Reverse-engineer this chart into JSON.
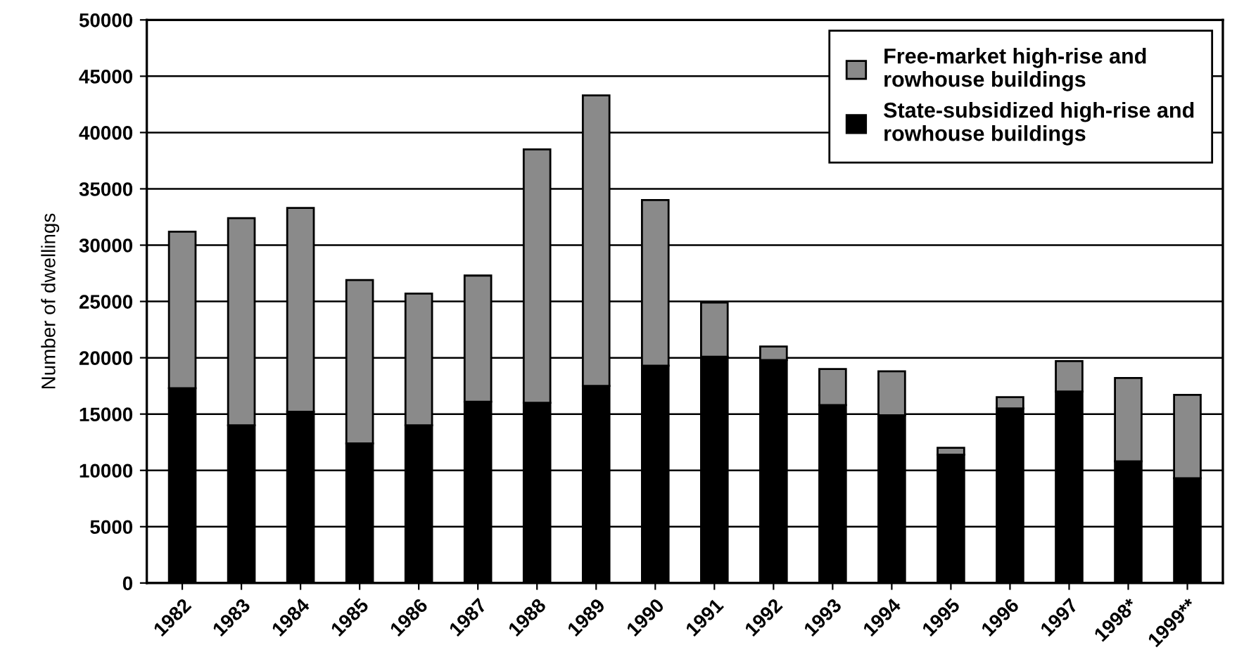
{
  "chart_data": {
    "type": "bar",
    "stacked": true,
    "ylabel": "Number of dwellings",
    "categories": [
      "1982",
      "1983",
      "1984",
      "1985",
      "1986",
      "1987",
      "1988",
      "1989",
      "1990",
      "1991",
      "1992",
      "1993",
      "1994",
      "1995",
      "1996",
      "1997",
      "1998*",
      "1999**"
    ],
    "series": [
      {
        "name": "State-subsidized high-rise and rowhouse buildings",
        "color": "#000000",
        "values": [
          17300,
          14000,
          15200,
          12400,
          14000,
          16100,
          16000,
          17500,
          19300,
          20100,
          19800,
          15800,
          14900,
          11400,
          15500,
          17000,
          10800,
          9300
        ]
      },
      {
        "name": "Free-market high-rise and rowhouse buildings",
        "color": "#8a8a8a",
        "values": [
          13900,
          18400,
          18100,
          14500,
          11700,
          11200,
          22500,
          25800,
          14700,
          4800,
          1200,
          3200,
          3900,
          600,
          1000,
          2700,
          7400,
          7400
        ]
      }
    ],
    "ylim": [
      0,
      50000
    ],
    "yticks": [
      0,
      5000,
      10000,
      15000,
      20000,
      25000,
      30000,
      35000,
      40000,
      45000,
      50000
    ],
    "grid": "y",
    "legend": "top right"
  }
}
